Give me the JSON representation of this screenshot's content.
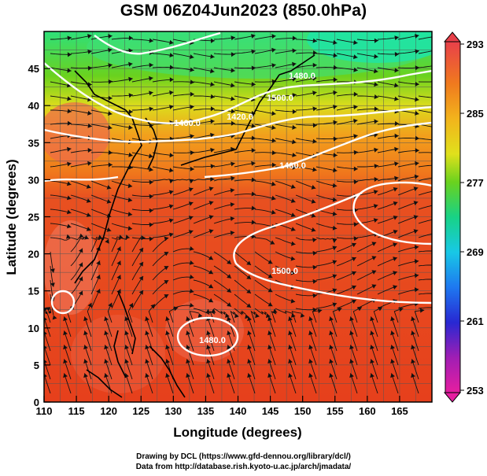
{
  "title": "GSM 06Z04Jun2023 (850.0hPa)",
  "credits": {
    "line1": "Drawing by DCL (https://www.gfd-dennou.org/library/dcl/)",
    "line2": "Data from http://database.rish.kyoto-u.ac.jp/arch/jmadata/"
  },
  "axes": {
    "x_label": "Longitude (degrees)",
    "y_label": "Latitude  (degrees)",
    "x_ticks": [
      "110",
      "115",
      "120",
      "125",
      "130",
      "135",
      "140",
      "145",
      "150",
      "155",
      "160",
      "165"
    ],
    "y_ticks": [
      "0",
      "5",
      "10",
      "15",
      "20",
      "25",
      "30",
      "35",
      "40",
      "45"
    ]
  },
  "colorbar": {
    "ticks": [
      "293",
      "285",
      "277",
      "269",
      "261",
      "253"
    ],
    "min": 253,
    "max": 293
  },
  "contour_labels": [
    "1480.0",
    "1500.0",
    "1460.0",
    "1480.0",
    "1420.0",
    "1500.0",
    "1480.0"
  ],
  "colors": {
    "warm": "#e8401e",
    "hot": "#f07a5a",
    "orange": "#f2a21c",
    "yellow": "#e8e41a",
    "green": "#5ad21e",
    "cyan": "#18e6b0",
    "contour": "#ffffff"
  }
}
